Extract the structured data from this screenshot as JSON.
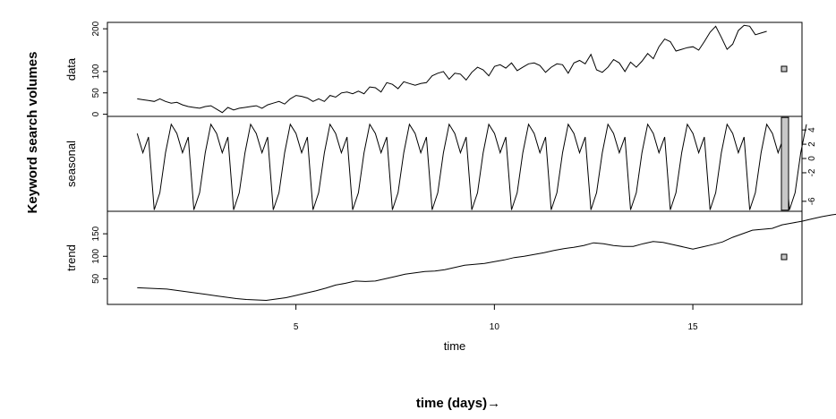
{
  "outer": {
    "ylabel": "Keyword  search volumes",
    "xlabel": "time (days)→"
  },
  "chart_data": {
    "type": "line",
    "title": "",
    "xlabel": "time",
    "x_ticks": [
      5,
      10,
      15
    ],
    "x_range": [
      0.25,
      17.75
    ],
    "panels": [
      {
        "name": "data",
        "ylabel": "data",
        "y_ticks": [
          0,
          50,
          100,
          200
        ],
        "y_axis_side": "left",
        "ylim": [
          -5,
          215
        ],
        "range_bar_height": 2,
        "series_start": 1,
        "series_step": 0.1429,
        "values": [
          36,
          34,
          32,
          30,
          36,
          30,
          26,
          28,
          22,
          18,
          16,
          14,
          18,
          20,
          12,
          4,
          16,
          10,
          14,
          16,
          18,
          20,
          14,
          22,
          26,
          30,
          24,
          36,
          44,
          42,
          38,
          30,
          36,
          30,
          44,
          40,
          50,
          52,
          48,
          54,
          48,
          64,
          62,
          52,
          74,
          70,
          60,
          76,
          72,
          68,
          72,
          74,
          90,
          96,
          100,
          82,
          96,
          94,
          80,
          98,
          110,
          104,
          90,
          112,
          116,
          108,
          120,
          102,
          110,
          118,
          120,
          114,
          98,
          110,
          118,
          116,
          96,
          120,
          126,
          118,
          140,
          104,
          98,
          110,
          128,
          120,
          100,
          122,
          110,
          124,
          142,
          130,
          158,
          176,
          170,
          148,
          152,
          156,
          158,
          150,
          170,
          192,
          206,
          180,
          152,
          164,
          196,
          208,
          206,
          186,
          190,
          194
        ]
      },
      {
        "name": "seasonal",
        "ylabel": "seasonal",
        "y_ticks": [
          -6,
          -2,
          0,
          2,
          4
        ],
        "y_axis_side": "right",
        "ylim": [
          -7.4,
          5.9
        ],
        "range_bar_height": 13.0,
        "series_start": 1,
        "series_step": 0.1429,
        "pattern": [
          3.5,
          0.8,
          3.0,
          -7.2,
          -4.8,
          0.8,
          4.8
        ],
        "cycles": 17
      },
      {
        "name": "trend",
        "ylabel": "trend",
        "y_ticks": [
          50,
          100,
          150
        ],
        "y_axis_side": "left",
        "ylim": [
          -7,
          200
        ],
        "range_bar_height": 2,
        "series_start": 1,
        "series_step": 0.25,
        "values": [
          30,
          29,
          28,
          27,
          24,
          21,
          18,
          15,
          12,
          9,
          6,
          4,
          3,
          2,
          5,
          8,
          13,
          18,
          23,
          29,
          36,
          40,
          45,
          44,
          45,
          50,
          55,
          60,
          63,
          66,
          67,
          70,
          75,
          80,
          82,
          84,
          88,
          92,
          97,
          100,
          104,
          108,
          113,
          117,
          120,
          124,
          130,
          128,
          124,
          122,
          122,
          128,
          133,
          131,
          126,
          121,
          116,
          121,
          126,
          132,
          142,
          150,
          158,
          160,
          162,
          170,
          174,
          178,
          183,
          188,
          192,
          195,
          200
        ]
      }
    ],
    "grid": false,
    "legend": "none"
  },
  "colors": {
    "line": "#000000",
    "frame": "#000000",
    "range_bar_fill": "#c8c8c8"
  }
}
